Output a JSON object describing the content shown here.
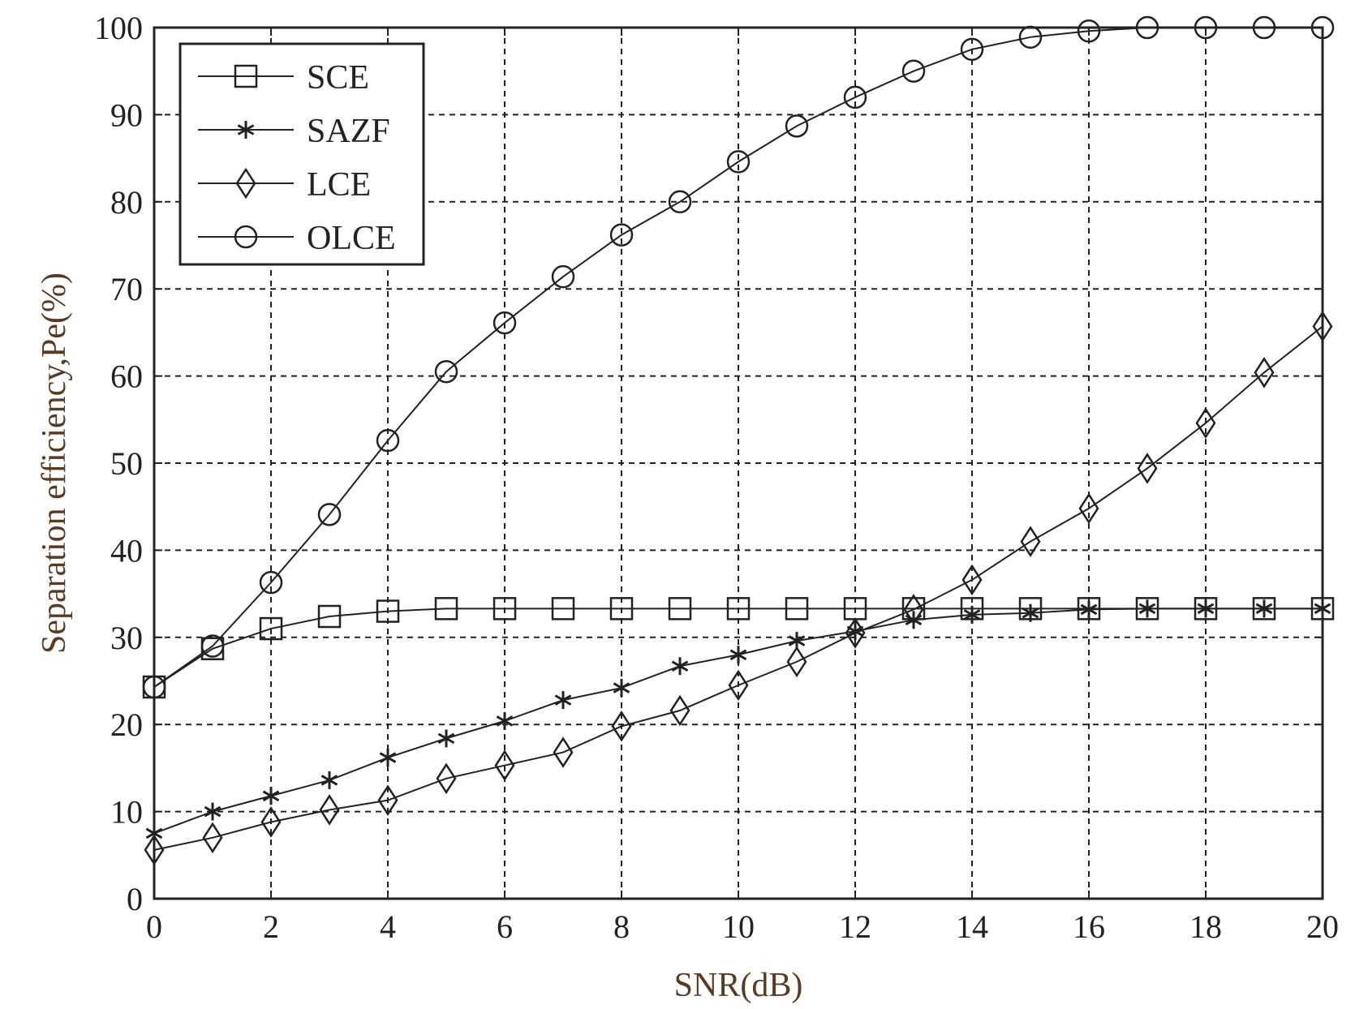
{
  "chart_data": {
    "type": "line",
    "title": "",
    "xlabel": "SNR(dB)",
    "ylabel": "Separation efficiency,Pe(%)",
    "xlim": [
      0,
      20
    ],
    "ylim": [
      0,
      100
    ],
    "xticks": [
      0,
      2,
      4,
      6,
      8,
      10,
      12,
      14,
      16,
      18,
      20
    ],
    "yticks": [
      0,
      10,
      20,
      30,
      40,
      50,
      60,
      70,
      80,
      90,
      100
    ],
    "grid": true,
    "legend_position": "top-left",
    "line_color": "#222222",
    "label_color": "#5b3a22",
    "x": [
      0,
      1,
      2,
      3,
      4,
      5,
      6,
      7,
      8,
      9,
      10,
      11,
      12,
      13,
      14,
      15,
      16,
      17,
      18,
      19,
      20
    ],
    "series": [
      {
        "name": "SCE",
        "marker": "square",
        "values": [
          24.3,
          28.7,
          31.0,
          32.4,
          33.0,
          33.3,
          33.3,
          33.3,
          33.3,
          33.3,
          33.3,
          33.3,
          33.3,
          33.3,
          33.3,
          33.3,
          33.3,
          33.3,
          33.3,
          33.3,
          33.3
        ]
      },
      {
        "name": "SAZF",
        "marker": "asterisk",
        "values": [
          7.5,
          10.0,
          11.8,
          13.6,
          16.2,
          18.4,
          20.4,
          22.8,
          24.2,
          26.7,
          28.0,
          29.6,
          30.7,
          32.0,
          32.6,
          32.8,
          33.2,
          33.3,
          33.3,
          33.3,
          33.3
        ]
      },
      {
        "name": "LCE",
        "marker": "diamond",
        "values": [
          5.6,
          7.0,
          8.8,
          10.2,
          11.3,
          13.8,
          15.3,
          16.8,
          19.8,
          21.6,
          24.5,
          27.2,
          30.5,
          33.2,
          36.6,
          41.0,
          44.8,
          49.4,
          54.6,
          60.4,
          65.7
        ]
      },
      {
        "name": "OLCE",
        "marker": "circle",
        "values": [
          24.3,
          29.0,
          36.3,
          44.1,
          52.6,
          60.5,
          66.1,
          71.4,
          76.2,
          80.0,
          84.6,
          88.7,
          92.0,
          95.0,
          97.5,
          98.9,
          99.6,
          100.0,
          100.0,
          100.0,
          100.0
        ]
      }
    ]
  }
}
